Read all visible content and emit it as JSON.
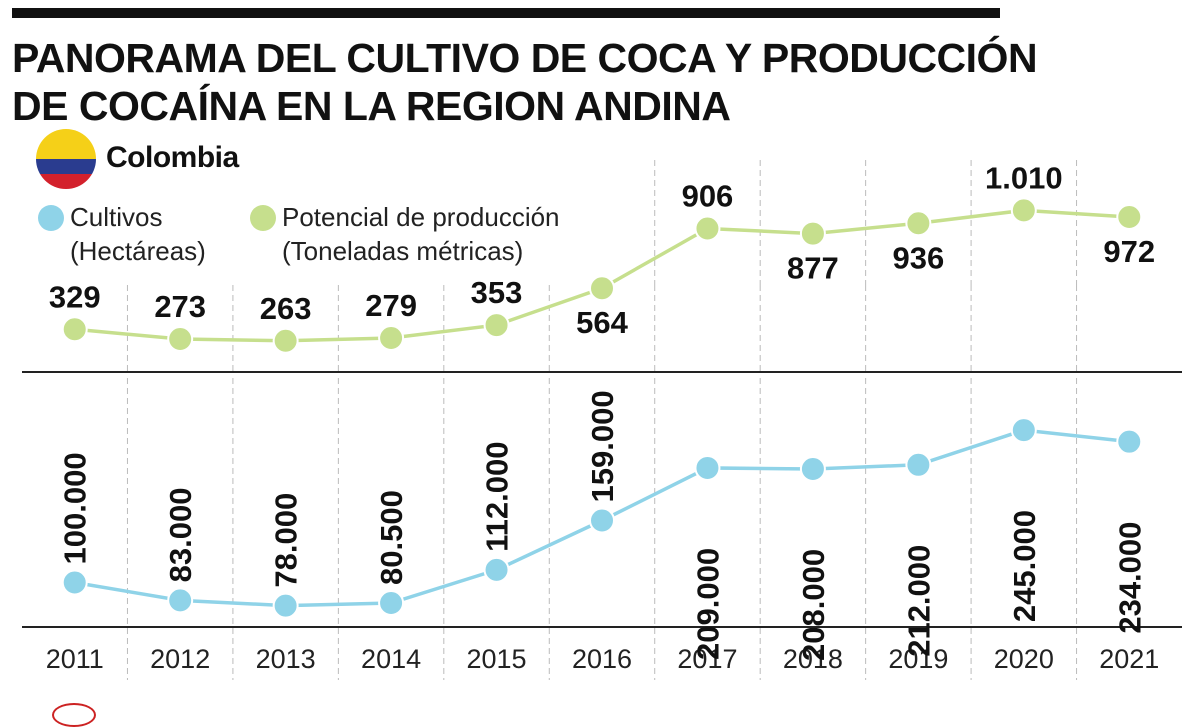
{
  "title_lines": [
    "PANORAMA DEL CULTIVO DE COCA Y PRODUCCIÓN",
    "DE COCAÍNA EN LA REGION ANDINA"
  ],
  "country": "Colombia",
  "legend": [
    {
      "label_line1": "Cultivos",
      "label_line2": "(Hectáreas)",
      "color": "#8fd3e8"
    },
    {
      "label_line1": "Potencial de producción",
      "label_line2": "(Toneladas métricas)",
      "color": "#c6df8d"
    }
  ],
  "colors": {
    "flag_yellow": "#f5d018",
    "flag_blue": "#2a3c8f",
    "flag_red": "#d3212c",
    "axis": "#222222",
    "grid": "#bbbbbb"
  },
  "chart_data": {
    "type": "line",
    "categories": [
      "2011",
      "2012",
      "2013",
      "2014",
      "2015",
      "2016",
      "2017",
      "2018",
      "2019",
      "2020",
      "2021"
    ],
    "series": [
      {
        "name": "Potencial de producción (Toneladas métricas)",
        "values": [
          329,
          273,
          263,
          279,
          353,
          564,
          906,
          877,
          936,
          1010,
          972
        ],
        "labels": [
          "329",
          "273",
          "263",
          "279",
          "353",
          "564",
          "906",
          "877",
          "936",
          "1.010",
          "972"
        ],
        "color": "#c6df8d"
      },
      {
        "name": "Cultivos (Hectáreas)",
        "values": [
          100000,
          83000,
          78000,
          80500,
          112000,
          159000,
          209000,
          208000,
          212000,
          245000,
          234000
        ],
        "labels": [
          "100.000",
          "83.000",
          "78.000",
          "80.500",
          "112.000",
          "159.000",
          "209.000",
          "208.000",
          "212.000",
          "245.000",
          "234.000"
        ],
        "color": "#8fd3e8"
      }
    ],
    "panels": "two stacked panels sharing the year axis",
    "grid": "dashed vertical separators between years"
  }
}
